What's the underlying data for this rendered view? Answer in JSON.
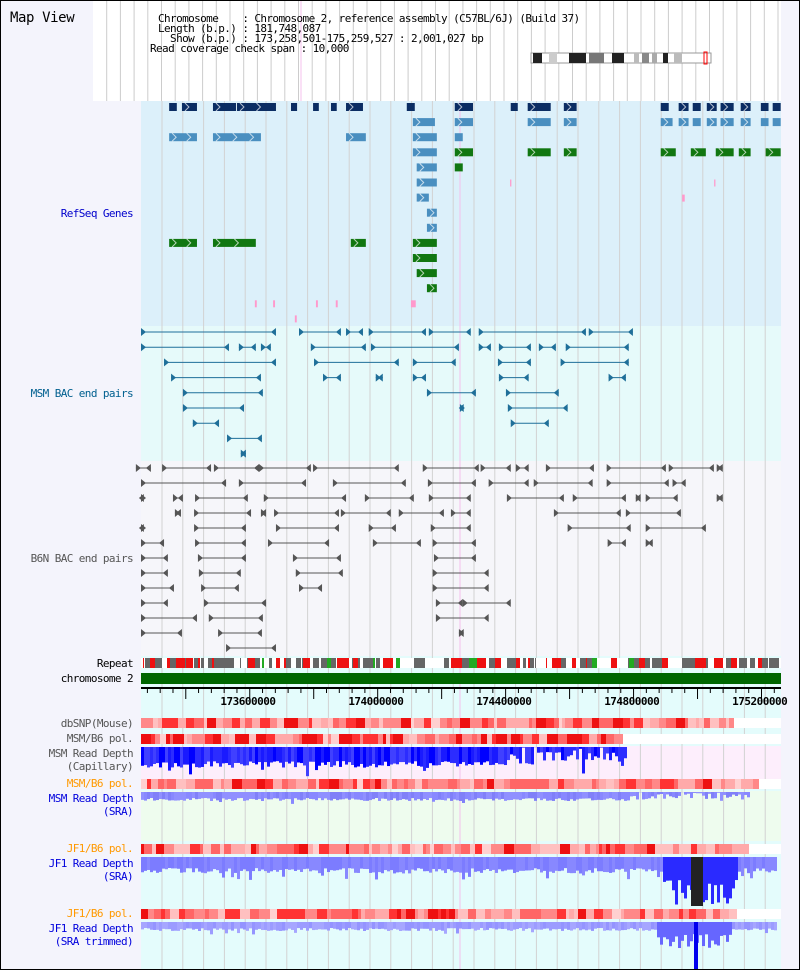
{
  "app": {
    "title": "Map View"
  },
  "header": {
    "chromosome_line": "Chromosome    : Chromosome 2, reference assembly (C57BL/6J) (Build 37)",
    "length_line": "Length (b.p.) : 181,748,087",
    "show_line": "  Show (b.p.) : 173,258,501-175,259,527 : 2,001,027 bp",
    "coverage_line": "Read coverage check span : 10,000"
  },
  "view": {
    "start_bp": 173258501,
    "end_bp": 175259527,
    "span_kb": 2001
  },
  "labels": {
    "refseq": "RefSeq Genes",
    "msm_bac": "MSM BAC end pairs",
    "b6n_bac": "B6N BAC end pairs",
    "repeat": "Repeat",
    "chromosome": "chromosome 2",
    "dbsnp": "dbSNP(Mouse)",
    "msm_pol1": "MSM/B6 pol.",
    "msm_cap1": "MSM Read Depth",
    "msm_cap2": "(Capillary)",
    "msm_pol2": "MSM/B6 pol.",
    "msm_sra1": "MSM Read Depth",
    "msm_sra2": "(SRA)",
    "jf1_pol1": "JF1/B6 pol.",
    "jf1_sra1": "JF1 Read Depth",
    "jf1_sra2": "(SRA)",
    "jf1_pol2": "JF1/B6 pol.",
    "jf1_tr1": "JF1 Read Depth",
    "jf1_tr2": "(SRA trimmed)"
  },
  "axis": {
    "ticks": [
      {
        "label": "173600000",
        "kb": 342
      },
      {
        "label": "174000000",
        "kb": 742
      },
      {
        "label": "174400000",
        "kb": 1142
      },
      {
        "label": "174800000",
        "kb": 1542
      },
      {
        "label": "175200000",
        "kb": 1942
      }
    ]
  },
  "colors": {
    "gene_dark": "#0b2d63",
    "gene_mid": "#4a8fc0",
    "gene_green": "#117711",
    "gene_pink": "#ff99cc",
    "msm_bac": "#1f6f99",
    "b6n_bac": "#555555",
    "chromosome": "#006600",
    "refseq_label": "#0000cc",
    "msm_label": "#005f8f",
    "gray_label": "#555555",
    "orange_label": "#ff9900",
    "blue_label": "#0000dd"
  },
  "refseq_rows": [
    {
      "color": "gene_dark",
      "features": [
        [
          88,
          112
        ],
        [
          128,
          175
        ],
        [
          225,
          297
        ],
        [
          300,
          422
        ],
        [
          469,
          488
        ],
        [
          538,
          556
        ],
        [
          594,
          612
        ],
        [
          641,
          694
        ],
        [
          831,
          856
        ],
        [
          981,
          1038
        ],
        [
          1156,
          1178
        ],
        [
          1209,
          1281
        ],
        [
          1322,
          1362
        ],
        [
          1625,
          1650
        ],
        [
          1681,
          1712
        ],
        [
          1725,
          1750
        ],
        [
          1769,
          1800
        ],
        [
          1812,
          1853
        ],
        [
          1875,
          1906
        ],
        [
          1938,
          1962
        ],
        [
          1975,
          2000
        ]
      ]
    },
    {
      "color": "gene_mid",
      "features": [
        [
          850,
          919
        ],
        [
          981,
          1038
        ],
        [
          1209,
          1281
        ],
        [
          1322,
          1362
        ],
        [
          1625,
          1662
        ],
        [
          1681,
          1712
        ],
        [
          1725,
          1750
        ],
        [
          1769,
          1800
        ],
        [
          1812,
          1853
        ],
        [
          1875,
          1906
        ],
        [
          1938,
          1962
        ],
        [
          1975,
          2000
        ]
      ]
    },
    {
      "color": "gene_mid",
      "features": [
        [
          88,
          175
        ],
        [
          225,
          375
        ],
        [
          641,
          703
        ],
        [
          850,
          925
        ],
        [
          981,
          1006
        ]
      ]
    },
    {
      "color": "gene_green",
      "features": [
        [
          981,
          1038
        ],
        [
          1209,
          1281
        ],
        [
          1322,
          1362
        ],
        [
          1625,
          1672
        ],
        [
          1719,
          1766
        ],
        [
          1797,
          1853
        ],
        [
          1869,
          1906
        ],
        [
          1953,
          2000
        ]
      ],
      "extra": [
        {
          "color": "gene_mid",
          "kb": [
            850,
            925
          ]
        }
      ]
    },
    {
      "color": "gene_mid",
      "features": [
        [
          862,
          925
        ]
      ],
      "extra": [
        {
          "color": "gene_green",
          "kb": [
            981,
            1006
          ]
        }
      ]
    },
    {
      "color": "gene_mid",
      "features": [
        [
          862,
          925
        ]
      ],
      "extra": [
        {
          "color": "gene_pink",
          "kb": [
            1154,
            1158
          ]
        },
        {
          "color": "gene_pink",
          "kb": [
            1792,
            1796
          ]
        }
      ]
    },
    {
      "color": "gene_mid",
      "features": [
        [
          862,
          900
        ]
      ],
      "extra": [
        {
          "color": "gene_pink",
          "kb": [
            1692,
            1700
          ]
        }
      ]
    },
    {
      "color": "gene_mid",
      "features": [
        [
          894,
          925
        ]
      ]
    },
    {
      "color": "gene_mid",
      "features": [
        [
          894,
          925
        ]
      ]
    },
    {
      "color": "gene_green",
      "features": [
        [
          88,
          175
        ],
        [
          225,
          359
        ],
        [
          656,
          703
        ],
        [
          850,
          925
        ]
      ]
    },
    {
      "color": "gene_green",
      "features": [
        [
          850,
          925
        ]
      ]
    },
    {
      "color": "gene_green",
      "features": [
        [
          862,
          925
        ]
      ]
    },
    {
      "color": "gene_green",
      "features": [
        [
          894,
          925
        ]
      ]
    },
    {
      "color": "gene_pink",
      "features": [
        [
          356,
          362
        ],
        [
          413,
          419
        ],
        [
          547,
          553
        ],
        [
          609,
          615
        ],
        [
          844,
          859
        ]
      ]
    },
    {
      "color": "gene_pink",
      "features": [
        [
          481,
          487
        ]
      ]
    }
  ],
  "msm_bac_rows": [
    [
      [
        0,
        422
      ],
      [
        494,
        625
      ],
      [
        641,
        694
      ],
      [
        712,
        891
      ],
      [
        900,
        1031
      ],
      [
        1056,
        1391
      ],
      [
        1400,
        1538
      ]
    ],
    [
      [
        0,
        275
      ],
      [
        306,
        359
      ],
      [
        375,
        406
      ],
      [
        531,
        703
      ],
      [
        719,
        994
      ],
      [
        1056,
        1094
      ],
      [
        1119,
        1219
      ],
      [
        1244,
        1297
      ],
      [
        1328,
        1525
      ]
    ],
    [
      [
        72,
        422
      ],
      [
        541,
        806
      ],
      [
        850,
        984
      ],
      [
        1116,
        1219
      ],
      [
        1312,
        1525
      ]
    ],
    [
      [
        94,
        375
      ],
      [
        569,
        625
      ],
      [
        734,
        756
      ],
      [
        850,
        891
      ],
      [
        1119,
        1212
      ],
      [
        1462,
        1516
      ]
    ],
    [
      [
        131,
        381
      ],
      [
        894,
        1047
      ],
      [
        1141,
        1306
      ]
    ],
    [
      [
        131,
        322
      ],
      [
        997,
        1009
      ],
      [
        1147,
        1334
      ]
    ],
    [
      [
        162,
        244
      ],
      [
        1156,
        1275
      ]
    ],
    [
      [
        269,
        378
      ]
    ],
    [
      [
        312,
        328
      ]
    ]
  ],
  "b6n_bac_rows": [
    [
      [
        -16,
        31
      ],
      [
        66,
        219
      ],
      [
        228,
        369
      ],
      [
        369,
        531
      ],
      [
        538,
        806
      ],
      [
        881,
        1056
      ],
      [
        1062,
        1156
      ],
      [
        1172,
        1212
      ],
      [
        1266,
        1416
      ],
      [
        1456,
        1641
      ],
      [
        1650,
        1791
      ],
      [
        1800,
        1819
      ]
    ],
    [
      [
        0,
        266
      ],
      [
        306,
        516
      ],
      [
        600,
        828
      ],
      [
        897,
        1047
      ],
      [
        1087,
        1212
      ],
      [
        1228,
        1412
      ],
      [
        1456,
        1650
      ],
      [
        1662,
        1703
      ]
    ],
    [
      [
        0,
        9
      ],
      [
        100,
        131
      ],
      [
        169,
        334
      ],
      [
        384,
        641
      ],
      [
        700,
        853
      ],
      [
        900,
        1031
      ],
      [
        1144,
        1322
      ],
      [
        1350,
        1516
      ],
      [
        1547,
        1562
      ],
      [
        1578,
        1678
      ],
      [
        1800,
        1819
      ]
    ],
    [
      [
        106,
        125
      ],
      [
        166,
        344
      ],
      [
        375,
        391
      ],
      [
        416,
        619
      ],
      [
        625,
        781
      ],
      [
        806,
        947
      ],
      [
        969,
        1031
      ],
      [
        1291,
        1500
      ],
      [
        1516,
        1688
      ]
    ],
    [
      [
        0,
        9
      ],
      [
        166,
        328
      ],
      [
        422,
        619
      ],
      [
        712,
        797
      ],
      [
        906,
        1031
      ],
      [
        1334,
        1531
      ],
      [
        1578,
        1766
      ]
    ],
    [
      [
        0,
        72
      ],
      [
        169,
        328
      ],
      [
        397,
        588
      ],
      [
        725,
        875
      ],
      [
        912,
        1047
      ],
      [
        1459,
        1516
      ],
      [
        1578,
        1600
      ]
    ],
    [
      [
        0,
        84
      ],
      [
        178,
        328
      ],
      [
        475,
        625
      ],
      [
        916,
        1047
      ]
    ],
    [
      [
        0,
        84
      ],
      [
        181,
        312
      ],
      [
        484,
        631
      ],
      [
        912,
        1087
      ]
    ],
    [
      [
        0,
        103
      ],
      [
        188,
        306
      ],
      [
        494,
        566
      ],
      [
        912,
        1087
      ]
    ],
    [
      [
        0,
        84
      ],
      [
        197,
        391
      ],
      [
        922,
        1006
      ],
      [
        1006,
        1156
      ]
    ],
    [
      [
        0,
        175
      ],
      [
        212,
        381
      ],
      [
        922,
        1087
      ]
    ],
    [
      [
        0,
        128
      ],
      [
        241,
        378
      ],
      [
        994,
        1009
      ]
    ],
    [
      [
        266,
        422
      ]
    ]
  ]
}
